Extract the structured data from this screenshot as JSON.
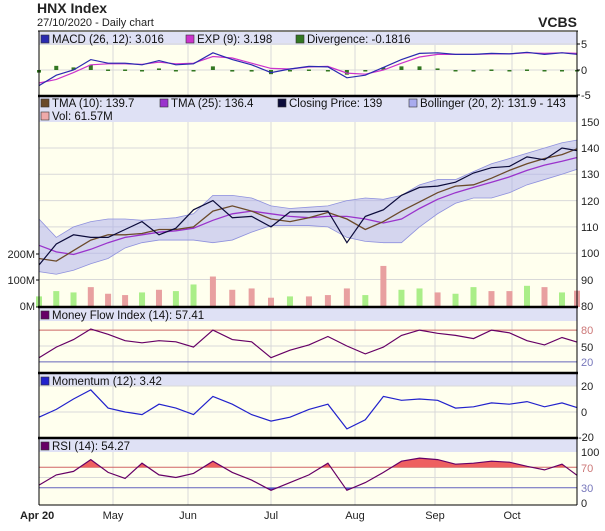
{
  "header": {
    "title": "HNX Index",
    "subtitle": "27/10/2020 - Daily chart",
    "brand": "VCBS"
  },
  "colors": {
    "plot_bg": "#ffffee",
    "legend_bg": "#dfe1f5",
    "grid": "#d9d9d9",
    "macd": "#2a2ab0",
    "exp": "#cc33cc",
    "divergence": "#337722",
    "tma10": "#6b4a2a",
    "tma25": "#9a33cc",
    "close": "#0b0b3a",
    "bollinger": "#a9abee",
    "vol_up": "#aaee88",
    "vol_down": "#e8a0a0",
    "vol_legend": "#eeaaaa",
    "mfi": "#660066",
    "momentum": "#2222cc",
    "rsi": "#660066",
    "overbought": "#cc6666",
    "oversold": "#6666bb",
    "rsi_fill_high": "#ee6060",
    "rsi_fill_low": "#5555cc"
  },
  "panels": {
    "macd": {
      "legend": [
        "MACD (26, 12): 3.016",
        "EXP (9): 3.198",
        "Divergence: -0.1816"
      ],
      "ticks": [
        "5",
        "0",
        "-5"
      ]
    },
    "price": {
      "legend": [
        "TMA (10): 139.7",
        "TMA (25): 136.4",
        "Closing Price: 139",
        "Bollinger (20, 2): 131.9 - 143",
        "Vol: 61.57M"
      ],
      "ticks": [
        "150",
        "140",
        "130",
        "120",
        "110",
        "100",
        "90",
        "80"
      ],
      "volume_ticks": [
        "200M",
        "100M",
        "0M"
      ]
    },
    "mfi": {
      "legend": [
        "Money Flow Index (14): 57.41"
      ],
      "ticks": [
        "80",
        "50",
        "20"
      ]
    },
    "momentum": {
      "legend": [
        "Momentum (12): 3.42"
      ],
      "ticks": [
        "20",
        "0",
        "-20"
      ]
    },
    "rsi": {
      "legend": [
        "RSI (14): 54.27"
      ],
      "ticks": [
        "100",
        "70",
        "30",
        "0"
      ]
    }
  },
  "x_axis": {
    "labels": [
      "Apr 20",
      "May",
      "Jun",
      "Jul",
      "Aug",
      "Sep",
      "Oct"
    ]
  },
  "chart_data": {
    "type": "line",
    "title": "HNX Index",
    "x": [
      "2020-04-01",
      "2020-04-08",
      "2020-04-15",
      "2020-04-22",
      "2020-04-29",
      "2020-05-06",
      "2020-05-13",
      "2020-05-20",
      "2020-05-27",
      "2020-06-03",
      "2020-06-10",
      "2020-06-17",
      "2020-06-24",
      "2020-07-01",
      "2020-07-08",
      "2020-07-15",
      "2020-07-22",
      "2020-07-29",
      "2020-08-05",
      "2020-08-12",
      "2020-08-19",
      "2020-08-26",
      "2020-09-02",
      "2020-09-09",
      "2020-09-16",
      "2020-09-23",
      "2020-09-30",
      "2020-10-07",
      "2020-10-14",
      "2020-10-21",
      "2020-10-27"
    ],
    "price_ylim": [
      80,
      150
    ],
    "volume_ylim_m": [
      0,
      270
    ],
    "grid": true,
    "series": [
      {
        "name": "Closing Price",
        "panel": "price",
        "values": [
          95.5,
          103.5,
          107,
          106,
          106,
          109,
          112,
          107,
          109.5,
          116.5,
          120,
          113.5,
          114,
          110,
          115.7,
          115.7,
          116,
          104,
          114,
          116.5,
          122,
          125,
          125.5,
          127,
          130.5,
          132.5,
          133,
          136.6,
          135.5,
          140,
          139
        ]
      },
      {
        "name": "TMA (10)",
        "panel": "price",
        "values": [
          98,
          97,
          101,
          105,
          107,
          107,
          107.5,
          109,
          109,
          110,
          116,
          118,
          116,
          113,
          112,
          113.5,
          115.5,
          113,
          109,
          112,
          116,
          119.5,
          123,
          125.5,
          126,
          128.5,
          131.5,
          134,
          136,
          137.5,
          139.7
        ]
      },
      {
        "name": "TMA (25)",
        "panel": "price",
        "values": [
          103,
          100.5,
          99.5,
          101.5,
          104,
          106,
          107,
          108,
          108.5,
          109.5,
          112.5,
          115,
          116,
          115,
          114,
          113.5,
          114,
          114,
          113,
          111.5,
          113,
          117,
          120.5,
          123,
          125,
          127,
          129,
          131.5,
          133.5,
          135,
          136.4
        ]
      },
      {
        "name": "Bollinger (20, 2) upper",
        "panel": "price",
        "values": [
          113,
          106,
          110,
          112,
          113,
          113,
          112.5,
          113,
          113.5,
          115,
          122,
          122,
          121,
          118,
          117,
          117.5,
          118,
          120,
          121,
          120.5,
          122,
          126,
          128,
          128,
          131,
          134,
          136,
          138,
          140,
          142,
          143
        ]
      },
      {
        "name": "Bollinger (20, 2) lower",
        "panel": "price",
        "values": [
          93,
          92,
          93.5,
          96,
          98,
          102,
          104,
          105,
          105,
          105,
          104,
          105,
          108,
          110.5,
          110.5,
          110.5,
          110,
          106,
          104.5,
          104,
          104,
          110,
          115,
          119,
          121,
          121,
          123,
          126,
          128,
          130,
          131.9
        ]
      },
      {
        "name": "Vol",
        "panel": "price",
        "unit": "M",
        "values": [
          40,
          60,
          55,
          75,
          50,
          45,
          55,
          65,
          60,
          85,
          115,
          65,
          70,
          35,
          40,
          40,
          45,
          70,
          45,
          155,
          65,
          70,
          55,
          50,
          75,
          60,
          60,
          80,
          75,
          55,
          61.57
        ],
        "direction": [
          "up",
          "up",
          "up",
          "down",
          "down",
          "down",
          "up",
          "down",
          "up",
          "up",
          "down",
          "down",
          "down",
          "down",
          "up",
          "down",
          "down",
          "down",
          "up",
          "down",
          "up",
          "up",
          "down",
          "up",
          "up",
          "down",
          "down",
          "up",
          "down",
          "up",
          "down"
        ]
      },
      {
        "name": "MACD (26, 12)",
        "panel": "macd",
        "values": [
          -3,
          -1,
          0,
          2,
          1.3,
          1.3,
          1.0,
          1.8,
          1.0,
          1.2,
          3.3,
          2.0,
          1.0,
          -0.5,
          0.2,
          0.7,
          0.6,
          -1.5,
          -1.0,
          0.5,
          2.0,
          3.2,
          3.3,
          3.0,
          3.0,
          3.2,
          3.1,
          3.4,
          3.0,
          3.3,
          3.016
        ]
      },
      {
        "name": "EXP (9)",
        "panel": "macd",
        "values": [
          -2.5,
          -1.8,
          -0.5,
          1.0,
          1.2,
          1.2,
          1.1,
          1.5,
          1.2,
          1.3,
          2.6,
          2.3,
          1.3,
          0.3,
          0.2,
          0.6,
          0.7,
          -0.6,
          -0.8,
          0.0,
          1.3,
          2.5,
          3.0,
          3.0,
          3.0,
          3.1,
          3.1,
          3.3,
          3.2,
          3.3,
          3.198
        ]
      },
      {
        "name": "Divergence",
        "panel": "macd",
        "values": [
          -0.5,
          0.8,
          0.5,
          1.0,
          0.1,
          0.1,
          -0.1,
          0.3,
          -0.2,
          -0.1,
          0.7,
          -0.3,
          -0.3,
          -0.8,
          0,
          0.1,
          -0.1,
          -0.9,
          -0.2,
          0.5,
          0.7,
          0.7,
          0.3,
          0,
          0,
          0.1,
          0,
          0.1,
          -0.2,
          0,
          -0.1816
        ]
      },
      {
        "name": "Money Flow Index (14)",
        "panel": "mfi",
        "values": [
          28,
          48,
          62,
          82,
          72,
          60,
          56,
          60,
          58,
          48,
          80,
          62,
          58,
          28,
          42,
          52,
          68,
          50,
          35,
          48,
          70,
          80,
          74,
          70,
          64,
          80,
          75,
          60,
          52,
          66,
          57.41
        ]
      },
      {
        "name": "Momentum (12)",
        "panel": "momentum",
        "values": [
          -4,
          2,
          10,
          17,
          3,
          0,
          -2,
          6,
          3,
          -2,
          12,
          6,
          -2,
          -7,
          -4,
          2,
          6,
          -13,
          -6,
          12,
          9,
          10,
          9,
          3,
          4,
          7,
          6,
          8,
          4,
          7,
          3.42
        ]
      },
      {
        "name": "RSI (14)",
        "panel": "rsi",
        "values": [
          35,
          55,
          62,
          85,
          60,
          48,
          78,
          55,
          50,
          58,
          82,
          60,
          45,
          25,
          40,
          55,
          78,
          25,
          40,
          60,
          82,
          88,
          85,
          76,
          78,
          82,
          80,
          72,
          65,
          76,
          54.27
        ]
      }
    ]
  }
}
